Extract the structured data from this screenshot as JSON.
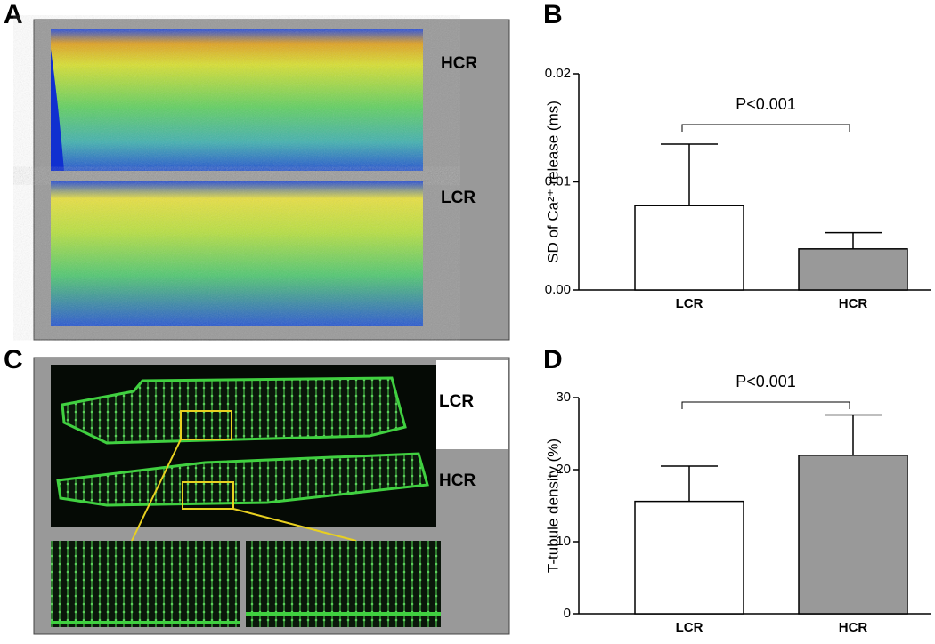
{
  "panels": {
    "a_label": "A",
    "c_label": "C",
    "a_top": "HCR",
    "a_bottom": "LCR",
    "c_top": "LCR",
    "c_bottom": "HCR"
  },
  "chart_data": [
    {
      "type": "bar",
      "panel_label": "B",
      "ylabel": "SD of Ca²⁺ release (ms)",
      "annotation": "P<0.001",
      "categories": [
        "LCR",
        "HCR"
      ],
      "values": [
        0.0078,
        0.0038
      ],
      "errors": [
        0.0057,
        0.0015
      ],
      "colors": [
        "#ffffff",
        "#999999"
      ],
      "ylim": [
        0,
        0.02
      ],
      "yticks": [
        {
          "value": 0,
          "label": "0.00"
        },
        0.01,
        0.02
      ]
    },
    {
      "type": "bar",
      "panel_label": "D",
      "ylabel": "T-tubule density (%)",
      "annotation": "P<0.001",
      "categories": [
        "LCR",
        "HCR"
      ],
      "values": [
        15.6,
        22
      ],
      "errors": [
        4.9,
        5.6
      ],
      "colors": [
        "#ffffff",
        "#999999"
      ],
      "ylim": [
        0,
        30
      ],
      "yticks": [
        0,
        10,
        20,
        30
      ]
    }
  ]
}
